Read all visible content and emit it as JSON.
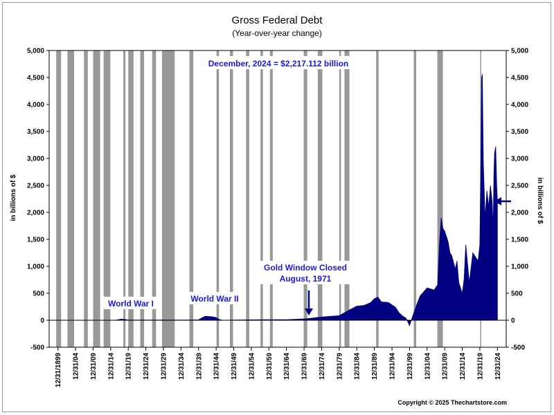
{
  "chart_data": {
    "type": "area",
    "title": "Gross Federal Debt",
    "subtitle": "(Year-over-year change)",
    "ylabel_left": "in billions of $",
    "ylabel_right": "in billions of $",
    "ylim": [
      -500,
      5000
    ],
    "ytick_labels": [
      "-500",
      "0",
      "500",
      "1,000",
      "1,500",
      "2,000",
      "2,500",
      "3,000",
      "3,500",
      "4,000",
      "4,500",
      "5,000"
    ],
    "yticks": [
      -500,
      0,
      500,
      1000,
      1500,
      2000,
      2500,
      3000,
      3500,
      4000,
      4500,
      5000
    ],
    "xlim": [
      1897.5,
      2027.5
    ],
    "xtick_labels": [
      "12/31/1899",
      "12/31/04",
      "12/31/09",
      "12/31/14",
      "12/31/19",
      "12/31/24",
      "12/31/29",
      "12/31/34",
      "12/31/39",
      "12/31/44",
      "12/31/49",
      "12/31/54",
      "12/31/59",
      "12/31/64",
      "12/31/69",
      "12/31/74",
      "12/31/79",
      "12/31/84",
      "12/31/89",
      "12/31/94",
      "12/31/99",
      "12/31/04",
      "12/31/09",
      "12/31/14",
      "12/31/19",
      "12/31/24"
    ],
    "xtick_years": [
      1900,
      1905,
      1910,
      1915,
      1920,
      1925,
      1930,
      1935,
      1940,
      1945,
      1950,
      1955,
      1960,
      1965,
      1970,
      1975,
      1980,
      1985,
      1990,
      1995,
      2000,
      2005,
      2010,
      2015,
      2020,
      2025
    ],
    "recessions": [
      [
        1899.5,
        1900.9
      ],
      [
        1902.7,
        1904.6
      ],
      [
        1907.4,
        1908.5
      ],
      [
        1910.0,
        1912.0
      ],
      [
        1913.0,
        1914.9
      ],
      [
        1918.6,
        1919.2
      ],
      [
        1920.0,
        1921.5
      ],
      [
        1923.4,
        1924.5
      ],
      [
        1926.8,
        1927.9
      ],
      [
        1929.6,
        1933.2
      ],
      [
        1937.4,
        1938.5
      ],
      [
        1945.1,
        1945.8
      ],
      [
        1948.9,
        1949.8
      ],
      [
        1953.5,
        1954.4
      ],
      [
        1957.6,
        1958.3
      ],
      [
        1960.3,
        1961.1
      ],
      [
        1969.9,
        1970.9
      ],
      [
        1973.9,
        1975.2
      ],
      [
        1980.0,
        1980.5
      ],
      [
        1981.5,
        1982.9
      ],
      [
        1990.5,
        1991.2
      ],
      [
        2001.2,
        2001.9
      ],
      [
        2007.9,
        2009.5
      ],
      [
        2020.1,
        2020.4
      ]
    ],
    "series": [
      {
        "fill_color": "#000080",
        "x": [
          1900,
          1916,
          1917,
          1918,
          1919,
          1920,
          1936,
          1940,
          1941,
          1942,
          1943,
          1944,
          1945,
          1946,
          1947,
          1950,
          1955,
          1960,
          1965,
          1970,
          1971,
          1975,
          1978,
          1980,
          1983,
          1985,
          1987,
          1988,
          1989,
          1990,
          1991,
          1992,
          1994,
          1996,
          1997,
          1998,
          1999,
          2000,
          2001,
          2002,
          2003,
          2005,
          2007,
          2008,
          2008.5,
          2009,
          2009.5,
          2010,
          2011,
          2011.5,
          2012,
          2013,
          2013.5,
          2014,
          2015,
          2015.5,
          2016,
          2017,
          2018,
          2019,
          2019.5,
          2020,
          2020.3,
          2020.5,
          2020.7,
          2021,
          2021.5,
          2022,
          2022.5,
          2023,
          2023.5,
          2023.8,
          2024,
          2024.2,
          2024.5,
          2024.8,
          2024.99
        ],
        "values": [
          0,
          0,
          8,
          20,
          15,
          4,
          5,
          8,
          48,
          75,
          68,
          64,
          50,
          10,
          0,
          5,
          8,
          12,
          12,
          26,
          30,
          60,
          75,
          85,
          195,
          260,
          275,
          300,
          330,
          400,
          430,
          340,
          330,
          240,
          140,
          80,
          40,
          -100,
          100,
          280,
          450,
          600,
          560,
          660,
          1400,
          1900,
          1700,
          1650,
          1450,
          1250,
          1200,
          950,
          1100,
          700,
          500,
          750,
          1400,
          700,
          1250,
          1150,
          1100,
          1400,
          3000,
          4500,
          4560,
          2900,
          1900,
          2400,
          2100,
          2500,
          2200,
          1700,
          2700,
          3100,
          3220,
          2500,
          2217
        ]
      }
    ],
    "annotations": {
      "latest": "December, 2024 = $2,217.112 billion",
      "ww1": "World War I",
      "ww2": "World War II",
      "gold_line1": "Gold Window Closed",
      "gold_line2": "August, 1971"
    },
    "latest_value": 2217.112,
    "annotation_color": "#1a1ad6",
    "recession_color": "#999999",
    "copyright": "Copyright © 2025 Thechartstore.com"
  }
}
